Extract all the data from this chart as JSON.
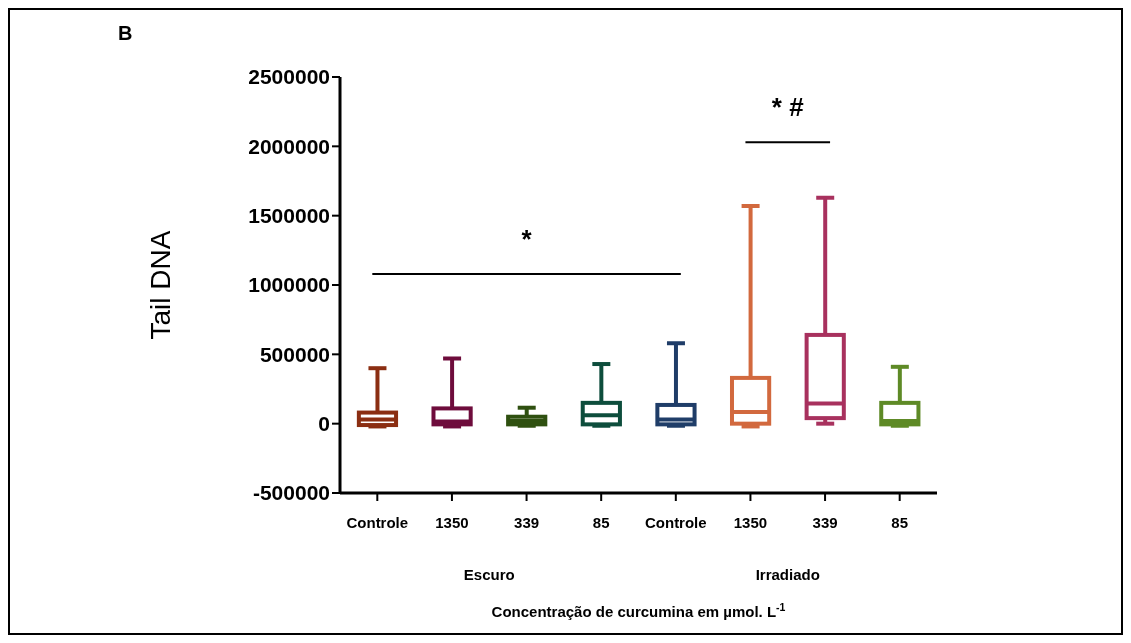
{
  "chart_data": {
    "type": "box",
    "title": "B",
    "ylabel": "Tail DNA",
    "xlabel": "Concentração de curcumina em µmol. L$^{-1}$",
    "categories": [
      "Controle",
      "1350",
      "339",
      "85",
      "Controle",
      "1350",
      "339",
      "85"
    ],
    "colors": [
      "#8b2e12",
      "#6e0c3c",
      "#2f5010",
      "#0d4d3c",
      "#1f3d68",
      "#d2693e",
      "#a8315e",
      "#5e8a26"
    ],
    "boxes": [
      {
        "low": -20000,
        "q1": -10000,
        "median": 30000,
        "q3": 80000,
        "high": 400000
      },
      {
        "low": -20000,
        "q1": -5000,
        "median": 15000,
        "q3": 110000,
        "high": 470000
      },
      {
        "low": -15000,
        "q1": -5000,
        "median": 20000,
        "q3": 50000,
        "high": 115000
      },
      {
        "low": -15000,
        "q1": -5000,
        "median": 60000,
        "q3": 150000,
        "high": 430000
      },
      {
        "low": -15000,
        "q1": -5000,
        "median": 30000,
        "q3": 135000,
        "high": 580000
      },
      {
        "low": -20000,
        "q1": 0,
        "median": 85000,
        "q3": 330000,
        "high": 1570000
      },
      {
        "low": 0,
        "q1": 40000,
        "median": 145000,
        "q3": 640000,
        "high": 1630000
      },
      {
        "low": -15000,
        "q1": -5000,
        "median": 20000,
        "q3": 150000,
        "high": 410000
      }
    ],
    "ylim": [
      -500000,
      2500000
    ],
    "yticks": [
      -500000,
      0,
      500000,
      1000000,
      1500000,
      2000000,
      2500000
    ],
    "annotations": [
      "*",
      "* #",
      "Escuro",
      "Irradiado"
    ]
  }
}
